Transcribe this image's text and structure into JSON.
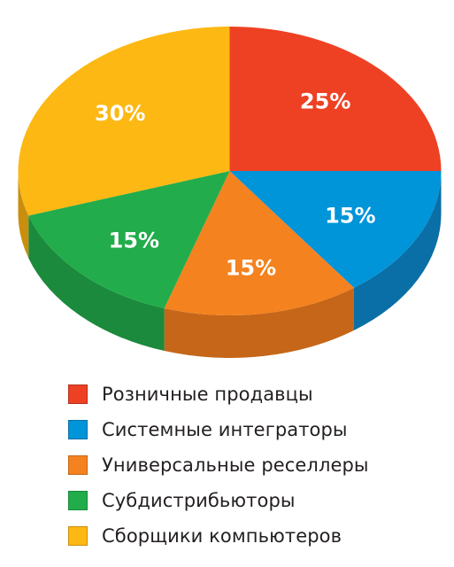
{
  "chart_data": {
    "type": "pie",
    "title": "",
    "start_angle_deg": 0,
    "direction": "clockwise",
    "slices": [
      {
        "name": "Розничные продавцы",
        "value": 25,
        "label": "25%",
        "color": "#ee4123",
        "side_color": "#b3301d"
      },
      {
        "name": "Системные интеграторы",
        "value": 15,
        "label": "15%",
        "color": "#0094d9",
        "side_color": "#0a6fa6"
      },
      {
        "name": "Универсальные реселлеры",
        "value": 15,
        "label": "15%",
        "color": "#f4821f",
        "side_color": "#c56618"
      },
      {
        "name": "Субдистрибьюторы",
        "value": 15,
        "label": "15%",
        "color": "#22ac4b",
        "side_color": "#1b8a3c"
      },
      {
        "name": "Сборщики компьютеров",
        "value": 30,
        "label": "30%",
        "color": "#fdb813",
        "side_color": "#c98e0e"
      }
    ],
    "legend_position": "bottom-left"
  }
}
